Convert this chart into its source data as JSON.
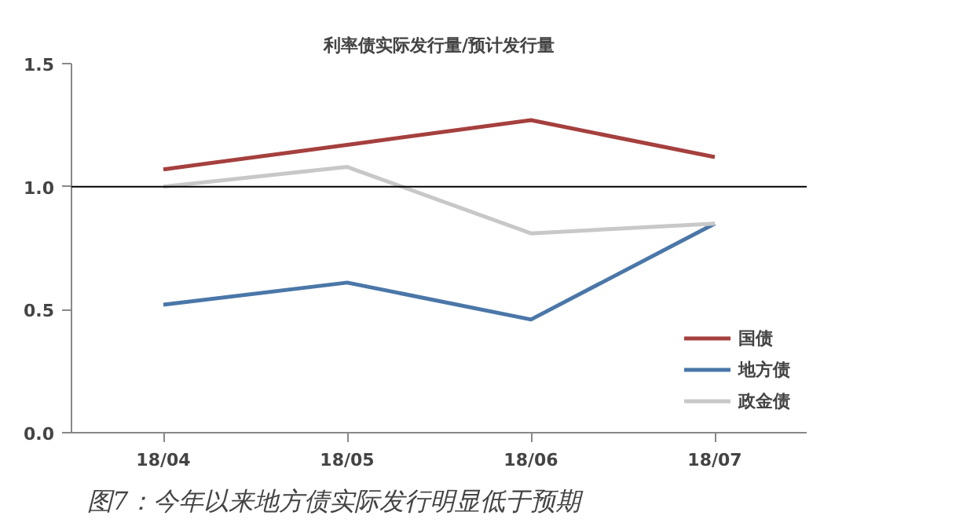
{
  "chart_data": {
    "type": "line",
    "title": "利率债实际发行量/预计发行量",
    "categories": [
      "18/04",
      "18/05",
      "18/06",
      "18/07"
    ],
    "series": [
      {
        "name": "国债",
        "color": "#a5403e",
        "values": [
          1.07,
          1.17,
          1.27,
          1.12
        ]
      },
      {
        "name": "地方债",
        "color": "#4a77a8",
        "values": [
          0.52,
          0.61,
          0.46,
          0.85
        ]
      },
      {
        "name": "政金债",
        "color": "#c8c8c8",
        "values": [
          1.0,
          1.08,
          0.81,
          0.85
        ]
      }
    ],
    "ylim": [
      0,
      1.5
    ],
    "yticks": [
      {
        "value": 0,
        "label": "0.0"
      },
      {
        "value": 0.5,
        "label": "0.5"
      },
      {
        "value": 1,
        "label": "1.0"
      },
      {
        "value": 1.5,
        "label": "1.5"
      }
    ],
    "ref_lines": [
      {
        "axis": "y",
        "value": 1,
        "color": "#000000"
      }
    ],
    "grid": false,
    "legend": "bottom right",
    "marker": "none",
    "line_style": "solid",
    "annotations": [
      "图7：今年以来地方债实际发行明显低于预期"
    ]
  }
}
